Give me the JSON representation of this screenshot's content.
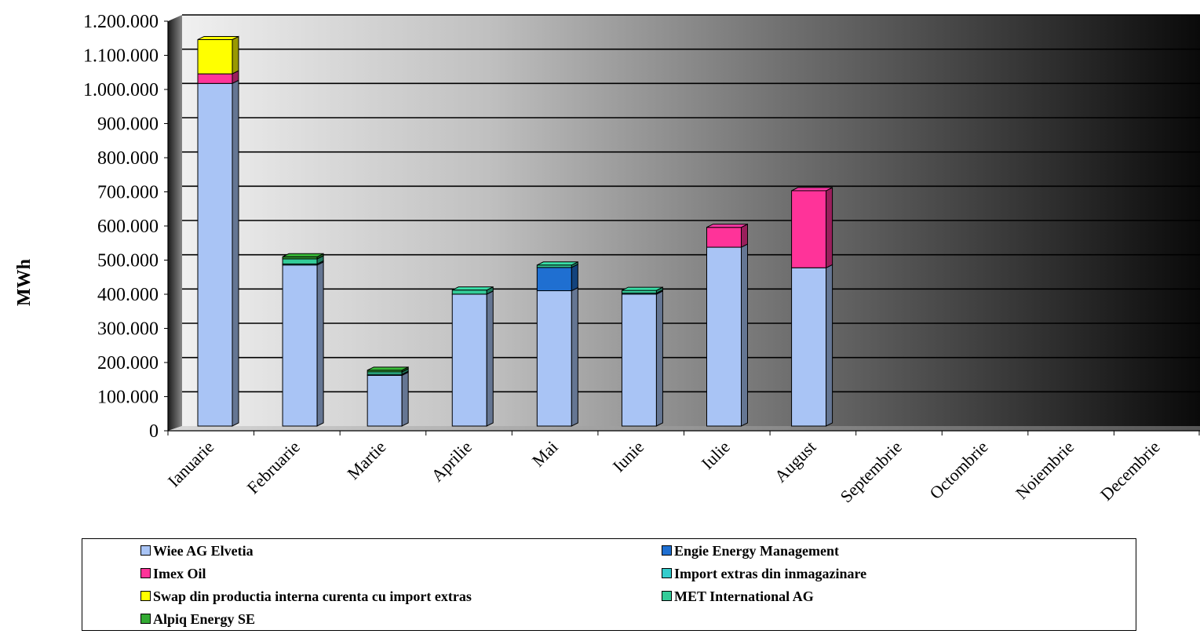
{
  "chart_data": {
    "type": "bar",
    "stacked": true,
    "ylabel": "MWh",
    "ylim": [
      0,
      1200000
    ],
    "yticks": [
      0,
      100000,
      200000,
      300000,
      400000,
      500000,
      600000,
      700000,
      800000,
      900000,
      1000000,
      1100000,
      1200000
    ],
    "ytick_labels": [
      "0",
      "100.000",
      "200.000",
      "300.000",
      "400.000",
      "500.000",
      "600.000",
      "700.000",
      "800.000",
      "900.000",
      "1.000.000",
      "1.100.000",
      "1.200.000"
    ],
    "grid": true,
    "legend_position": "bottom",
    "categories": [
      "Ianuarie",
      "Februarie",
      "Martie",
      "Aprilie",
      "Mai",
      "Iunie",
      "Iulie",
      "August",
      "Septembrie",
      "Octombrie",
      "Noiembrie",
      "Decembrie"
    ],
    "series": [
      {
        "name": "Wiee AG Elvetia",
        "color": "#a9c4f5",
        "values": [
          1000000,
          470000,
          148000,
          385000,
          395000,
          385000,
          522000,
          462000,
          0,
          0,
          0,
          0
        ]
      },
      {
        "name": "Engie Energy Management",
        "color": "#1f6fd1",
        "values": [
          0,
          0,
          0,
          0,
          68000,
          0,
          0,
          0,
          0,
          0,
          0,
          0
        ]
      },
      {
        "name": "Imex Oil",
        "color": "#ff3399",
        "values": [
          28000,
          0,
          0,
          0,
          0,
          0,
          58000,
          225000,
          0,
          0,
          0,
          0
        ]
      },
      {
        "name": "Import extras din inmagazinare",
        "color": "#33cccc",
        "values": [
          0,
          3000,
          3000,
          0,
          0,
          3000,
          0,
          0,
          0,
          0,
          0,
          0
        ]
      },
      {
        "name": "Swap din productia interna curenta cu import extras",
        "color": "#ffff00",
        "values": [
          100000,
          0,
          0,
          0,
          0,
          0,
          0,
          0,
          0,
          0,
          0,
          0
        ]
      },
      {
        "name": "MET International AG",
        "color": "#33cc99",
        "values": [
          0,
          15000,
          7000,
          12000,
          7000,
          8000,
          0,
          0,
          0,
          0,
          0,
          0
        ]
      },
      {
        "name": "Alpiq Energy SE",
        "color": "#33aa33",
        "values": [
          0,
          6000,
          5000,
          0,
          0,
          0,
          0,
          0,
          0,
          0,
          0,
          0
        ]
      }
    ]
  }
}
